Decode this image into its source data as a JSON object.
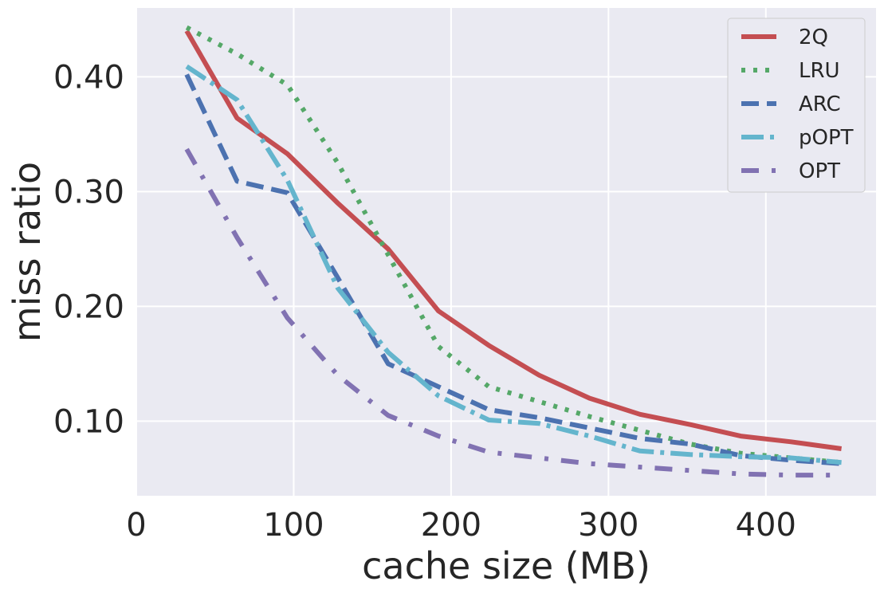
{
  "chart_data": {
    "type": "line",
    "xlabel": "cache size (MB)",
    "ylabel": "miss ratio",
    "xlim": [
      0,
      470
    ],
    "ylim": [
      0.035,
      0.46
    ],
    "xticks": [
      0,
      100,
      200,
      300,
      400
    ],
    "xtick_labels": [
      "0",
      "100",
      "200",
      "300",
      "400"
    ],
    "yticks": [
      0.1,
      0.2,
      0.3,
      0.4
    ],
    "ytick_labels": [
      "0.10",
      "0.20",
      "0.30",
      "0.40"
    ],
    "grid": true,
    "legend_position": "top-right",
    "x": [
      32,
      64,
      96,
      128,
      160,
      192,
      224,
      256,
      288,
      320,
      352,
      384,
      416,
      448
    ],
    "series": [
      {
        "name": "2Q",
        "color": "#c44e52",
        "style": "solid",
        "values": [
          0.44,
          0.364,
          0.333,
          0.29,
          0.25,
          0.196,
          0.166,
          0.14,
          0.12,
          0.106,
          0.097,
          0.087,
          0.082,
          0.076
        ]
      },
      {
        "name": "LRU",
        "color": "#55a868",
        "style": "dotted",
        "values": [
          0.443,
          0.42,
          0.393,
          0.325,
          0.245,
          0.165,
          0.13,
          0.117,
          0.104,
          0.092,
          0.08,
          0.072,
          0.068,
          0.064
        ]
      },
      {
        "name": "ARC",
        "color": "#4c72b0",
        "style": "dashed",
        "values": [
          0.402,
          0.309,
          0.299,
          0.225,
          0.15,
          0.13,
          0.11,
          0.103,
          0.094,
          0.085,
          0.08,
          0.07,
          0.066,
          0.063
        ]
      },
      {
        "name": "pOPT",
        "color": "#64b5cd",
        "style": "dashdot",
        "values": [
          0.409,
          0.38,
          0.31,
          0.216,
          0.16,
          0.122,
          0.101,
          0.098,
          0.087,
          0.074,
          0.071,
          0.069,
          0.068,
          0.064
        ]
      },
      {
        "name": "OPT",
        "color": "#8172b2",
        "style": "loosedashdot",
        "values": [
          0.337,
          0.26,
          0.19,
          0.14,
          0.105,
          0.087,
          0.073,
          0.068,
          0.063,
          0.06,
          0.057,
          0.054,
          0.053,
          0.053
        ]
      }
    ]
  }
}
